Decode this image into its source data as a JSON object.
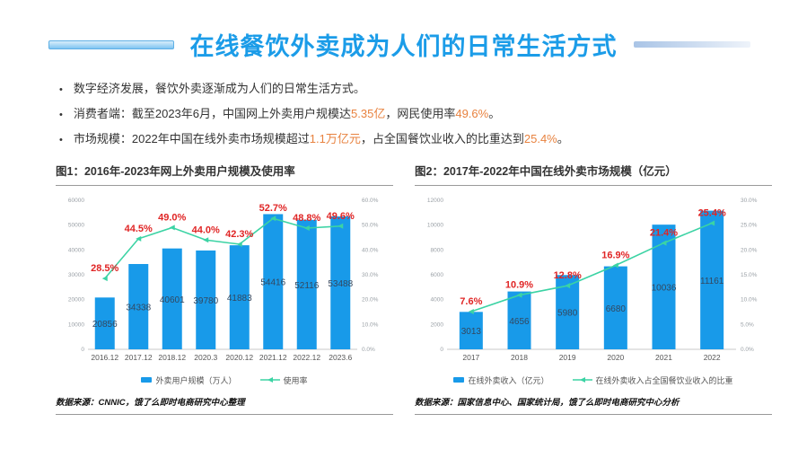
{
  "slide": {
    "title": "在线餐饮外卖成为人们的日常生活方式",
    "colors": {
      "accent": "#1b9ce8",
      "highlight": "#e8823f",
      "bar": "#189ae9",
      "line": "#3bd3a4",
      "label_red": "#e02525"
    },
    "bullets": [
      {
        "segments": [
          {
            "t": "数字经济发展，餐饮外卖逐渐成为人们的日常生活方式。",
            "hl": false
          }
        ]
      },
      {
        "segments": [
          {
            "t": "消费者端：截至2023年6月，中国网上外卖用户规模达",
            "hl": false
          },
          {
            "t": "5.35亿",
            "hl": true
          },
          {
            "t": "，网民使用率",
            "hl": false
          },
          {
            "t": "49.6%",
            "hl": true
          },
          {
            "t": "。",
            "hl": false
          }
        ]
      },
      {
        "segments": [
          {
            "t": "市场规模：2022年中国在线外卖市场规模超过",
            "hl": false
          },
          {
            "t": "1.1万亿元",
            "hl": true
          },
          {
            "t": "，占全国餐饮业收入的比重达到",
            "hl": false
          },
          {
            "t": "25.4%",
            "hl": true
          },
          {
            "t": "。",
            "hl": false
          }
        ]
      }
    ]
  },
  "chart_data": [
    {
      "type": "bar",
      "combo": "bar+line",
      "title": "图1：2016年-2023年网上外卖用户规模及使用率",
      "categories": [
        "2016.12",
        "2017.12",
        "2018.12",
        "2020.3",
        "2020.12",
        "2021.12",
        "2022.12",
        "2023.6"
      ],
      "series": [
        {
          "name": "外卖用户规模（万人）",
          "kind": "bar",
          "axis": "left",
          "color": "#189ae9",
          "values": [
            20856,
            34338,
            40601,
            39780,
            41883,
            54416,
            52116,
            53488
          ]
        },
        {
          "name": "使用率",
          "kind": "line",
          "axis": "right",
          "color": "#3bd3a4",
          "label_color": "#e02525",
          "suffix": "%",
          "values": [
            28.5,
            44.5,
            49.0,
            44.0,
            42.3,
            52.7,
            48.8,
            49.6
          ]
        }
      ],
      "left_axis": {
        "min": 0,
        "max": 60000,
        "step": 10000
      },
      "right_axis": {
        "min": 0,
        "max": 60,
        "step": 10,
        "suffix": "%",
        "decimals": 1
      },
      "grid": false,
      "legend_position": "bottom",
      "source": "数据来源：CNNIC，饿了么即时电商研究中心整理"
    },
    {
      "type": "bar",
      "combo": "bar+line",
      "title": "图2：2017年-2022年中国在线外卖市场规模（亿元）",
      "categories": [
        "2017",
        "2018",
        "2019",
        "2020",
        "2021",
        "2022"
      ],
      "series": [
        {
          "name": "在线外卖收入（亿元）",
          "kind": "bar",
          "axis": "left",
          "color": "#189ae9",
          "values": [
            3013,
            4656,
            5980,
            6680,
            10036,
            11161
          ]
        },
        {
          "name": "在线外卖收入占全国餐饮业收入的比重",
          "kind": "line",
          "axis": "right",
          "color": "#3bd3a4",
          "label_color": "#e02525",
          "suffix": "%",
          "values": [
            7.6,
            10.9,
            12.8,
            16.9,
            21.4,
            25.4
          ]
        }
      ],
      "left_axis": {
        "min": 0,
        "max": 12000,
        "step": 2000
      },
      "right_axis": {
        "min": 0,
        "max": 30,
        "step": 5,
        "suffix": "%",
        "decimals": 1
      },
      "grid": false,
      "legend_position": "bottom",
      "source": "数据来源：国家信息中心、国家统计局，饿了么即时电商研究中心分析"
    }
  ]
}
